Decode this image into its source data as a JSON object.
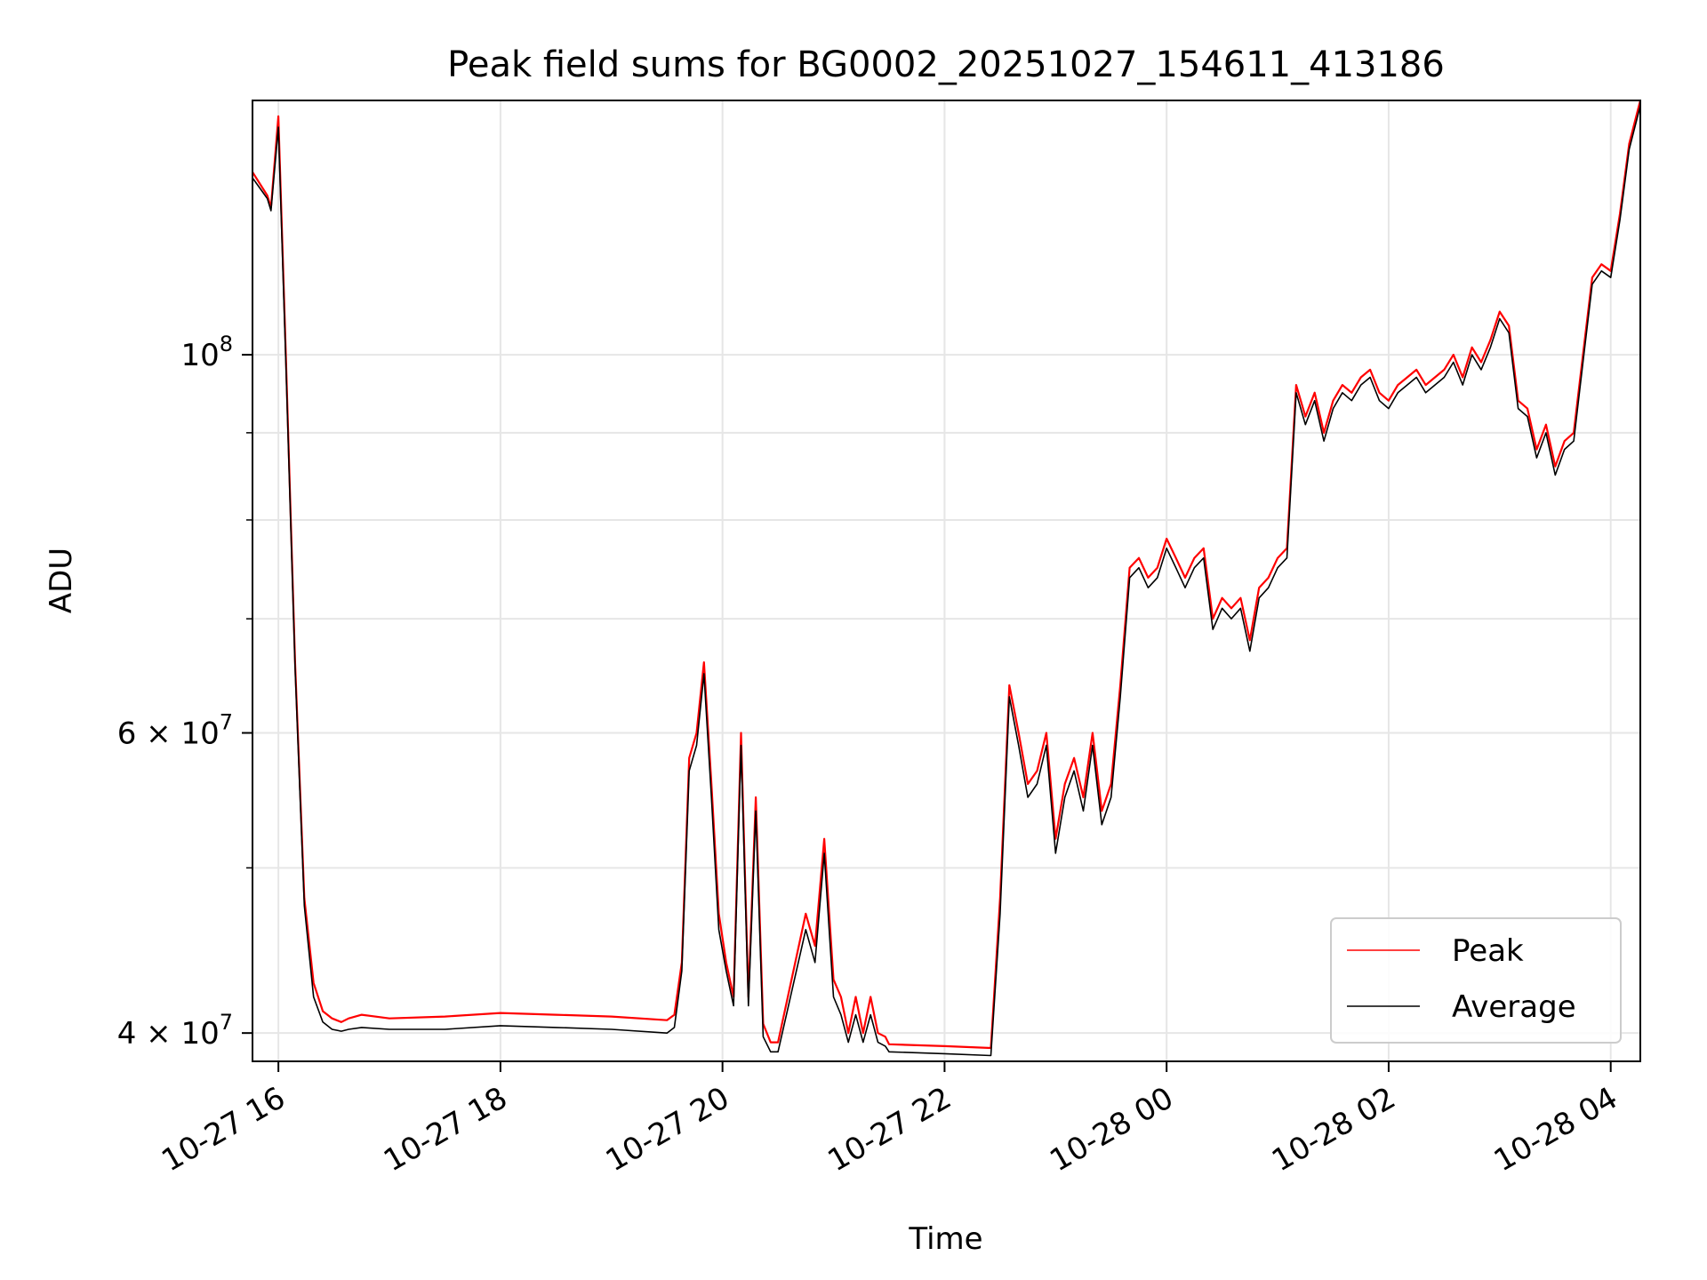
{
  "chart_data": {
    "type": "line",
    "title": "Peak field sums for BG0002_20251027_154611_413186",
    "xlabel": "Time",
    "ylabel": "ADU",
    "y_scale": "log",
    "ylim": [
      38500000,
      141000000
    ],
    "xlim": [
      "2025-10-27 15:46",
      "2025-10-28 04:16"
    ],
    "grid": true,
    "legend_position": "bottom-right",
    "x_ticks": [
      {
        "value": "2025-10-27 16:00",
        "label": "10-27 16"
      },
      {
        "value": "2025-10-27 18:00",
        "label": "10-27 18"
      },
      {
        "value": "2025-10-27 20:00",
        "label": "10-27 20"
      },
      {
        "value": "2025-10-27 22:00",
        "label": "10-27 22"
      },
      {
        "value": "2025-10-28 00:00",
        "label": "10-28 00"
      },
      {
        "value": "2025-10-28 02:00",
        "label": "10-28 02"
      },
      {
        "value": "2025-10-28 04:00",
        "label": "10-28 04"
      }
    ],
    "y_ticks": [
      {
        "value": 40000000,
        "base": "4 × 10",
        "exp": "7"
      },
      {
        "value": 60000000,
        "base": "6 × 10",
        "exp": "7"
      },
      {
        "value": 100000000,
        "base": "10",
        "exp": "8"
      }
    ],
    "y_minor_ticks": [
      50000000,
      70000000,
      80000000,
      90000000
    ],
    "series": [
      {
        "name": "Peak",
        "color": "#ff0000",
        "x": [
          "2025-10-27 15:46",
          "2025-10-27 15:54",
          "2025-10-27 15:56",
          "2025-10-27 16:00",
          "2025-10-27 16:04",
          "2025-10-27 16:09",
          "2025-10-27 16:14",
          "2025-10-27 16:19",
          "2025-10-27 16:24",
          "2025-10-27 16:29",
          "2025-10-27 16:34",
          "2025-10-27 16:38",
          "2025-10-27 16:45",
          "2025-10-27 17:00",
          "2025-10-27 17:30",
          "2025-10-27 18:00",
          "2025-10-27 18:30",
          "2025-10-27 19:00",
          "2025-10-27 19:30",
          "2025-10-27 19:34",
          "2025-10-27 19:38",
          "2025-10-27 19:42",
          "2025-10-27 19:46",
          "2025-10-27 19:50",
          "2025-10-27 19:54",
          "2025-10-27 19:58",
          "2025-10-27 20:02",
          "2025-10-27 20:06",
          "2025-10-27 20:10",
          "2025-10-27 20:14",
          "2025-10-27 20:18",
          "2025-10-27 20:22",
          "2025-10-27 20:26",
          "2025-10-27 20:30",
          "2025-10-27 20:45",
          "2025-10-27 20:50",
          "2025-10-27 20:55",
          "2025-10-27 21:00",
          "2025-10-27 21:04",
          "2025-10-27 21:08",
          "2025-10-27 21:12",
          "2025-10-27 21:16",
          "2025-10-27 21:20",
          "2025-10-27 21:24",
          "2025-10-27 21:28",
          "2025-10-27 21:30",
          "2025-10-27 22:00",
          "2025-10-27 22:25",
          "2025-10-27 22:30",
          "2025-10-27 22:35",
          "2025-10-27 22:40",
          "2025-10-27 22:45",
          "2025-10-27 22:50",
          "2025-10-27 22:55",
          "2025-10-27 23:00",
          "2025-10-27 23:05",
          "2025-10-27 23:10",
          "2025-10-27 23:15",
          "2025-10-27 23:20",
          "2025-10-27 23:25",
          "2025-10-27 23:30",
          "2025-10-27 23:35",
          "2025-10-27 23:40",
          "2025-10-27 23:45",
          "2025-10-27 23:50",
          "2025-10-27 23:55",
          "2025-10-28 00:00",
          "2025-10-28 00:05",
          "2025-10-28 00:10",
          "2025-10-28 00:15",
          "2025-10-28 00:20",
          "2025-10-28 00:25",
          "2025-10-28 00:30",
          "2025-10-28 00:35",
          "2025-10-28 00:40",
          "2025-10-28 00:45",
          "2025-10-28 00:50",
          "2025-10-28 00:55",
          "2025-10-28 01:00",
          "2025-10-28 01:05",
          "2025-10-28 01:10",
          "2025-10-28 01:15",
          "2025-10-28 01:20",
          "2025-10-28 01:25",
          "2025-10-28 01:30",
          "2025-10-28 01:35",
          "2025-10-28 01:40",
          "2025-10-28 01:45",
          "2025-10-28 01:50",
          "2025-10-28 01:55",
          "2025-10-28 02:00",
          "2025-10-28 02:05",
          "2025-10-28 02:10",
          "2025-10-28 02:15",
          "2025-10-28 02:20",
          "2025-10-28 02:25",
          "2025-10-28 02:30",
          "2025-10-28 02:35",
          "2025-10-28 02:40",
          "2025-10-28 02:45",
          "2025-10-28 02:50",
          "2025-10-28 02:55",
          "2025-10-28 03:00",
          "2025-10-28 03:05",
          "2025-10-28 03:10",
          "2025-10-28 03:15",
          "2025-10-28 03:20",
          "2025-10-28 03:25",
          "2025-10-28 03:30",
          "2025-10-28 03:35",
          "2025-10-28 03:40",
          "2025-10-28 03:45",
          "2025-10-28 03:50",
          "2025-10-28 03:55",
          "2025-10-28 04:00",
          "2025-10-28 04:05",
          "2025-10-28 04:10",
          "2025-10-28 04:16"
        ],
        "y": [
          128000000,
          124000000,
          122000000,
          138000000,
          100000000,
          66000000,
          48000000,
          42800000,
          41200000,
          40800000,
          40600000,
          40800000,
          41000000,
          40800000,
          40900000,
          41100000,
          41000000,
          40900000,
          40700000,
          41000000,
          44000000,
          58000000,
          60000000,
          66000000,
          56000000,
          47000000,
          44000000,
          42000000,
          60000000,
          42000000,
          55000000,
          40500000,
          39500000,
          39500000,
          47000000,
          45000000,
          52000000,
          43000000,
          42000000,
          40000000,
          42000000,
          40000000,
          42000000,
          40000000,
          39800000,
          39400000,
          39300000,
          39200000,
          48000000,
          64000000,
          60000000,
          56000000,
          57000000,
          60000000,
          52000000,
          56000000,
          58000000,
          55000000,
          60000000,
          54000000,
          56000000,
          64000000,
          75000000,
          76000000,
          74000000,
          75000000,
          78000000,
          76000000,
          74000000,
          76000000,
          77000000,
          70000000,
          72000000,
          71000000,
          72000000,
          68000000,
          73000000,
          74000000,
          76000000,
          77000000,
          96000000,
          92000000,
          95000000,
          90000000,
          94000000,
          96000000,
          95000000,
          97000000,
          98000000,
          95000000,
          94000000,
          96000000,
          97000000,
          98000000,
          96000000,
          97000000,
          98000000,
          100000000,
          97000000,
          101000000,
          99000000,
          102000000,
          106000000,
          104000000,
          94000000,
          93000000,
          88000000,
          91000000,
          86000000,
          89000000,
          90000000,
          100000000,
          111000000,
          113000000,
          112000000,
          121000000,
          133000000,
          141000000
        ]
      },
      {
        "name": "Average",
        "color": "#000000",
        "x": [
          "2025-10-27 15:46",
          "2025-10-27 15:54",
          "2025-10-27 15:56",
          "2025-10-27 16:00",
          "2025-10-27 16:04",
          "2025-10-27 16:09",
          "2025-10-27 16:14",
          "2025-10-27 16:19",
          "2025-10-27 16:24",
          "2025-10-27 16:29",
          "2025-10-27 16:34",
          "2025-10-27 16:38",
          "2025-10-27 16:45",
          "2025-10-27 17:00",
          "2025-10-27 17:30",
          "2025-10-27 18:00",
          "2025-10-27 18:30",
          "2025-10-27 19:00",
          "2025-10-27 19:30",
          "2025-10-27 19:34",
          "2025-10-27 19:38",
          "2025-10-27 19:42",
          "2025-10-27 19:46",
          "2025-10-27 19:50",
          "2025-10-27 19:54",
          "2025-10-27 19:58",
          "2025-10-27 20:02",
          "2025-10-27 20:06",
          "2025-10-27 20:10",
          "2025-10-27 20:14",
          "2025-10-27 20:18",
          "2025-10-27 20:22",
          "2025-10-27 20:26",
          "2025-10-27 20:30",
          "2025-10-27 20:45",
          "2025-10-27 20:50",
          "2025-10-27 20:55",
          "2025-10-27 21:00",
          "2025-10-27 21:04",
          "2025-10-27 21:08",
          "2025-10-27 21:12",
          "2025-10-27 21:16",
          "2025-10-27 21:20",
          "2025-10-27 21:24",
          "2025-10-27 21:28",
          "2025-10-27 21:30",
          "2025-10-27 22:00",
          "2025-10-27 22:25",
          "2025-10-27 22:30",
          "2025-10-27 22:35",
          "2025-10-27 22:40",
          "2025-10-27 22:45",
          "2025-10-27 22:50",
          "2025-10-27 22:55",
          "2025-10-27 23:00",
          "2025-10-27 23:05",
          "2025-10-27 23:10",
          "2025-10-27 23:15",
          "2025-10-27 23:20",
          "2025-10-27 23:25",
          "2025-10-27 23:30",
          "2025-10-27 23:35",
          "2025-10-27 23:40",
          "2025-10-27 23:45",
          "2025-10-27 23:50",
          "2025-10-27 23:55",
          "2025-10-28 00:00",
          "2025-10-28 00:05",
          "2025-10-28 00:10",
          "2025-10-28 00:15",
          "2025-10-28 00:20",
          "2025-10-28 00:25",
          "2025-10-28 00:30",
          "2025-10-28 00:35",
          "2025-10-28 00:40",
          "2025-10-28 00:45",
          "2025-10-28 00:50",
          "2025-10-28 00:55",
          "2025-10-28 01:00",
          "2025-10-28 01:05",
          "2025-10-28 01:10",
          "2025-10-28 01:15",
          "2025-10-28 01:20",
          "2025-10-28 01:25",
          "2025-10-28 01:30",
          "2025-10-28 01:35",
          "2025-10-28 01:40",
          "2025-10-28 01:45",
          "2025-10-28 01:50",
          "2025-10-28 01:55",
          "2025-10-28 02:00",
          "2025-10-28 02:05",
          "2025-10-28 02:10",
          "2025-10-28 02:15",
          "2025-10-28 02:20",
          "2025-10-28 02:25",
          "2025-10-28 02:30",
          "2025-10-28 02:35",
          "2025-10-28 02:40",
          "2025-10-28 02:45",
          "2025-10-28 02:50",
          "2025-10-28 02:55",
          "2025-10-28 03:00",
          "2025-10-28 03:05",
          "2025-10-28 03:10",
          "2025-10-28 03:15",
          "2025-10-28 03:20",
          "2025-10-28 03:25",
          "2025-10-28 03:30",
          "2025-10-28 03:35",
          "2025-10-28 03:40",
          "2025-10-28 03:45",
          "2025-10-28 03:50",
          "2025-10-28 03:55",
          "2025-10-28 04:00",
          "2025-10-28 04:05",
          "2025-10-28 04:10",
          "2025-10-28 04:16"
        ],
        "y": [
          127000000,
          123500000,
          121500000,
          136000000,
          99000000,
          65500000,
          47500000,
          42000000,
          40600000,
          40200000,
          40100000,
          40200000,
          40300000,
          40200000,
          40200000,
          40400000,
          40300000,
          40200000,
          40000000,
          40300000,
          43500000,
          57000000,
          59000000,
          65000000,
          55000000,
          46000000,
          43500000,
          41500000,
          59000000,
          41500000,
          54000000,
          39800000,
          39000000,
          39000000,
          46000000,
          44000000,
          51000000,
          42000000,
          41000000,
          39500000,
          41000000,
          39500000,
          41000000,
          39500000,
          39300000,
          39000000,
          38900000,
          38800000,
          47000000,
          63000000,
          59000000,
          55000000,
          56000000,
          59000000,
          51000000,
          55000000,
          57000000,
          54000000,
          59000000,
          53000000,
          55000000,
          63000000,
          74000000,
          75000000,
          73000000,
          74000000,
          77000000,
          75000000,
          73000000,
          75000000,
          76000000,
          69000000,
          71000000,
          70000000,
          71000000,
          67000000,
          72000000,
          73000000,
          75000000,
          76000000,
          95000000,
          91000000,
          94000000,
          89000000,
          93000000,
          95000000,
          94000000,
          96000000,
          97000000,
          94000000,
          93000000,
          95000000,
          96000000,
          97000000,
          95000000,
          96000000,
          97000000,
          99000000,
          96000000,
          100000000,
          98000000,
          101000000,
          105000000,
          103000000,
          93000000,
          92000000,
          87000000,
          90000000,
          85000000,
          88000000,
          89000000,
          99000000,
          110000000,
          112000000,
          111000000,
          120000000,
          132000000,
          140000000
        ]
      }
    ]
  }
}
